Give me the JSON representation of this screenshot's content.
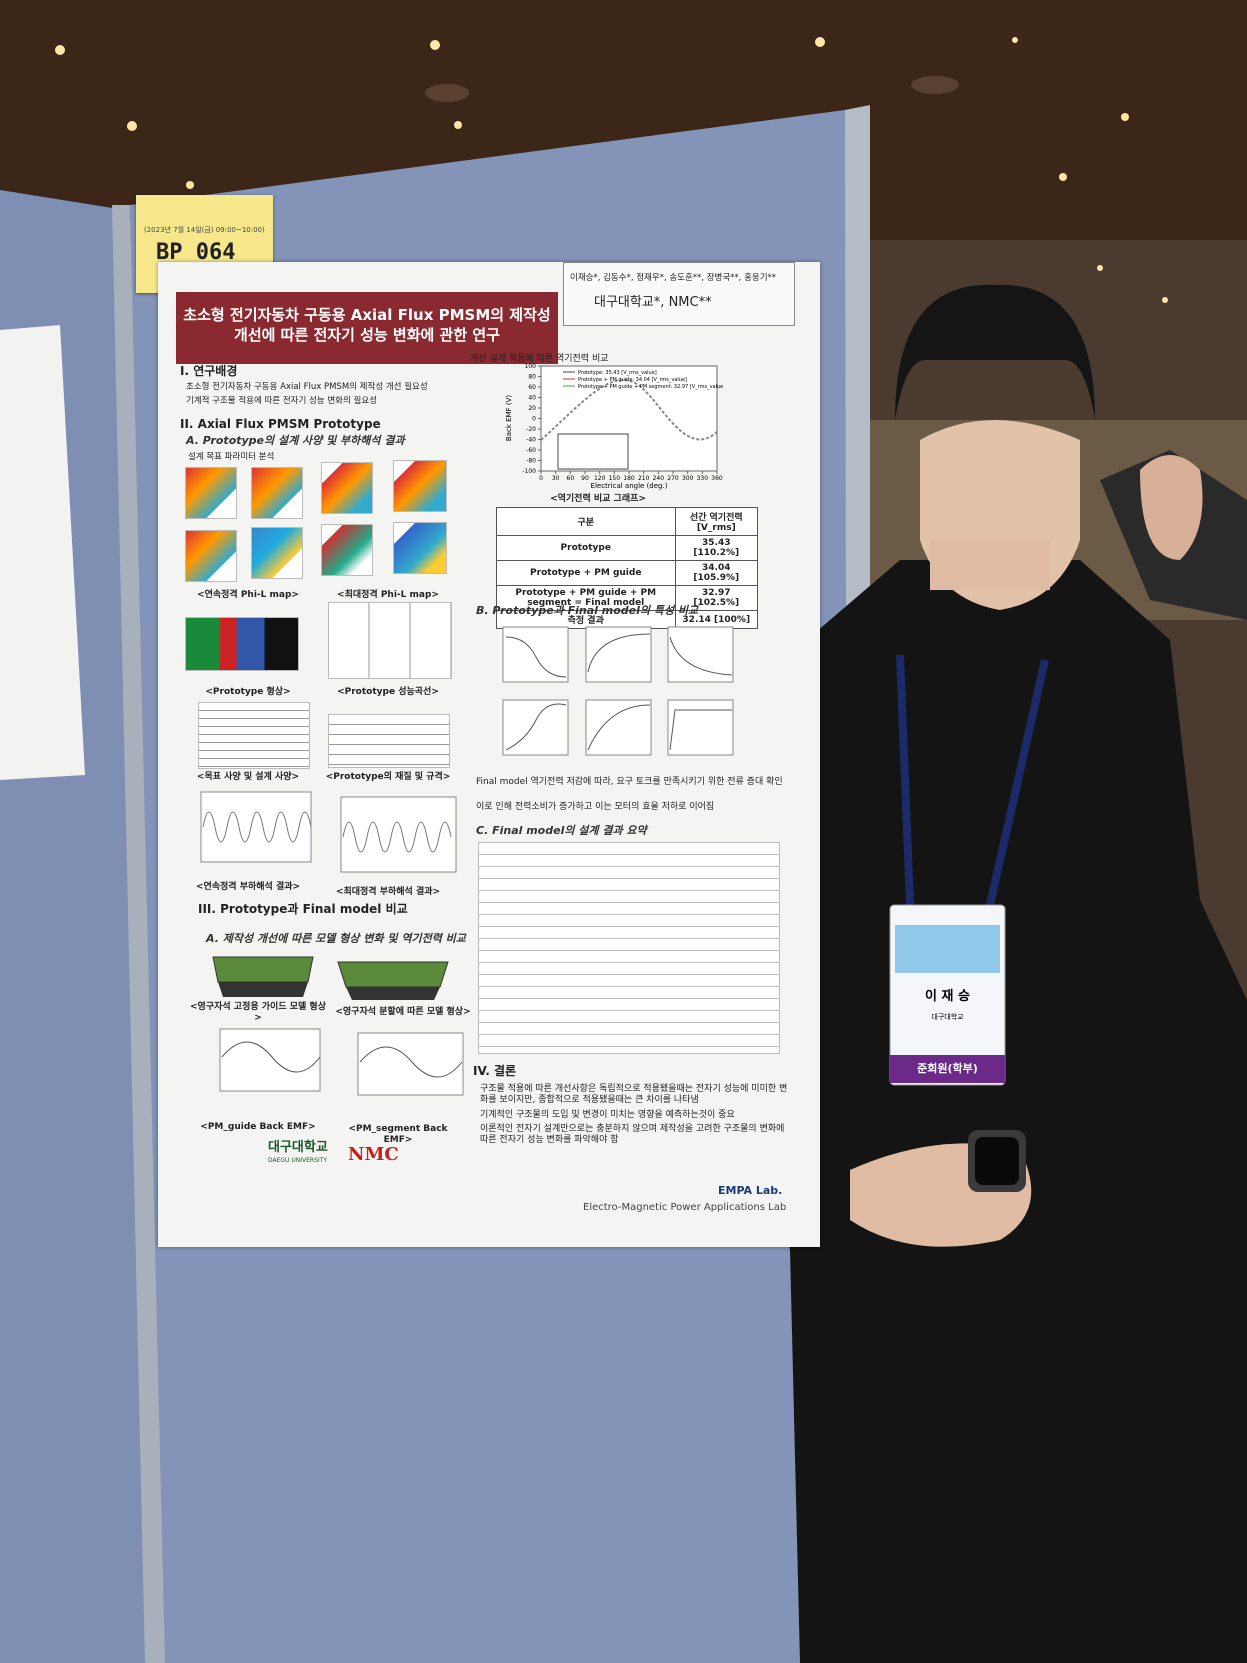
{
  "badge": {
    "date": "(2023년 7월 14일(금) 09:00~10:00)",
    "code": "BP 064"
  },
  "poster": {
    "title": [
      "초소형 전기자동차 구동용 Axial Flux PMSM의 제작성",
      "개선에 따른 전자기 성능 변화에 관한 연구"
    ],
    "authors": "이재승*, 김동수*, 정재우*, 송도훈**, 장병국**, 홍웅기**",
    "affiliation": "대구대학교*, NMC**",
    "s1": {
      "heading": "I. 연구배경",
      "bullets": [
        "초소형 전기자동차 구동용 Axial Flux PMSM의 제작성 개선 필요성",
        "기계적 구조물 적용에 따른 전자기 성능 변화의 필요성"
      ]
    },
    "s2": {
      "heading": "II. Axial Flux PMSM Prototype",
      "sub": "A. Prototype의 설계 사양 및 부하해석 결과",
      "bullet": "설계 목표 파라미터 분석",
      "captions": [
        "<연속정격 Phi-L map>",
        "<최대정격 Phi-L map>",
        "<Prototype 형상>",
        "<Prototype 성능곡선>",
        "<목표 사양 및 설계 사양>",
        "<Prototype의 재질 및 규격>",
        "<연속정격 부하해석 결과>",
        "<최대정격 부하해석 결과>"
      ]
    },
    "s3": {
      "heading": "III. Prototype과 Final model 비교",
      "sub": "A. 제작성 개선에 따른 모델 형상 변화 및 역기전력 비교",
      "captions": [
        "<영구자석 고정용 가이드 모델 형상>",
        "<영구자석 분할에 따른 모델 형상>",
        "<PM_guide Back EMF>",
        "<PM_segment Back EMF>"
      ]
    },
    "emf": {
      "heading": "개선 설계 적용에 따른 역기전력 비교",
      "caption": "<역기전력 비교 그래프>",
      "legend": [
        "Prototype: 35.43 [V_rms_value]",
        "Prototype + PM guide: 34.04 [V_rms_value]",
        "Prototype + PM guide + PM segment: 32.97 [V_rms_value]"
      ],
      "xlabel": "Electrical angle (deg.)",
      "ylabel": "Back EMF (V)",
      "xlim": [
        0,
        360
      ],
      "ylim": [
        -100,
        100
      ],
      "xticks": [
        0,
        30,
        60,
        90,
        120,
        150,
        180,
        210,
        240,
        270,
        300,
        330,
        360
      ],
      "yticks": [
        -100,
        -80,
        -60,
        -40,
        -20,
        0,
        20,
        40,
        60,
        80,
        100
      ]
    },
    "emf_table": {
      "header": [
        "구분",
        "선간 역기전력 [V_rms]"
      ],
      "rows": [
        [
          "Prototype",
          "35.43 [110.2%]"
        ],
        [
          "Prototype + PM guide",
          "34.04 [105.9%]"
        ],
        [
          "Prototype + PM guide + PM segment = Final model",
          "32.97 [102.5%]"
        ],
        [
          "측정 결과",
          "32.14 [100%]"
        ]
      ]
    },
    "sB": {
      "heading": "B. Prototype과 Final model의 특성 비교",
      "bullets": [
        "Final model 역기전력 저감에 따라, 요구 토크를 만족시키기 위한 전류 증대 확인",
        "이로 인해 전력소비가 증가하고 이는 모터의 효율 저하로 이어짐"
      ]
    },
    "sC": {
      "heading": "C. Final model의 설계 결과 요약"
    },
    "s4": {
      "heading": "IV. 결론",
      "bullets": [
        "구조물 적용에 따른 개선사항은 독립적으로 적용됐을때는 전자기 성능에 미미한 변화를 보이지만, 종합적으로 적용됐을때는 큰 차이를 나타냄",
        "기계적인 구조물의 도입 및 변경이 미치는 영향을 예측하는것이 중요",
        "이론적인 전자기 설계만으로는 충분하지 않으며 제작성을 고려한 구조물의 변화에 따른 전자기 성능 변화를 파악해야 함"
      ]
    },
    "logos": {
      "univ": "대구대학교",
      "univ_en": "DAEGU UNIVERSITY",
      "company": "NMC"
    },
    "lab": {
      "mark": "EMPA Lab.",
      "name": "Electro-Magnetic Power Applications Lab"
    }
  },
  "name_tag": {
    "name": "이 재 승",
    "org": "대구대학교",
    "grade": "준회원(학부)"
  }
}
